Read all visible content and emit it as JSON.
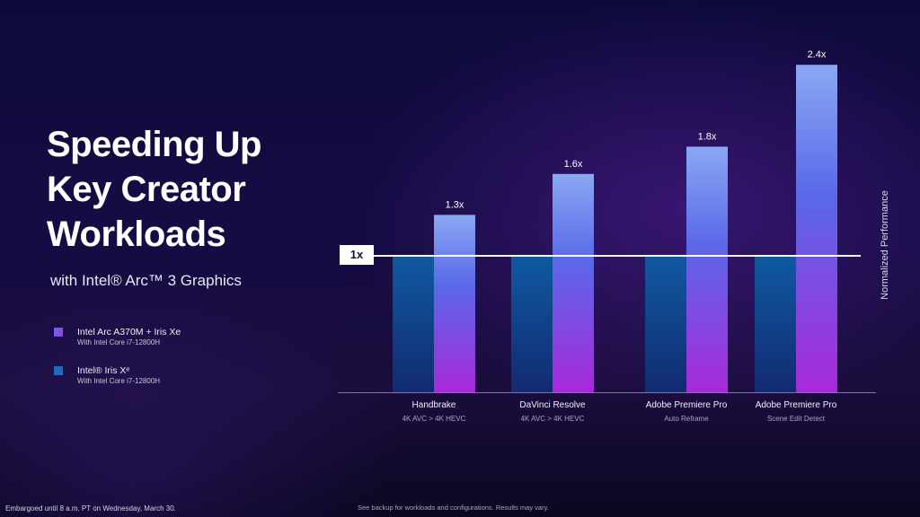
{
  "slide": {
    "title_lines": [
      "Speeding Up",
      "Key Creator",
      "Workloads"
    ],
    "subtitle": "with Intel® Arc™ 3 Graphics",
    "baseline_label": "1x",
    "footer_left": "Embargoed until 8 a.m. PT on Wednesday, March 30.",
    "footer_note": "See backup for workloads and configurations. Results may vary."
  },
  "legend": [
    {
      "name": "Intel Arc A370M + Iris Xe",
      "sub": "With Intel Core i7-12800H",
      "color": "#7b52e8"
    },
    {
      "name": "Intel® Iris Xᵉ",
      "sub": "With Intel Core i7-12800H",
      "color": "#1a6ec2"
    }
  ],
  "chart_data": {
    "type": "bar",
    "ylabel": "Normalized Performance",
    "ylim": [
      0,
      2.5
    ],
    "grid": false,
    "categories": [
      {
        "name": "Handbrake",
        "sub": "4K AVC > 4K HEVC"
      },
      {
        "name": "DaVinci Resolve",
        "sub": "4K AVC > 4K HEVC"
      },
      {
        "name": "Adobe Premiere Pro",
        "sub": "Auto Reframe"
      },
      {
        "name": "Adobe Premiere Pro",
        "sub": "Scene Edit Detect"
      }
    ],
    "series": [
      {
        "name": "Intel® Iris Xᵉ",
        "values": [
          1,
          1,
          1,
          1
        ],
        "color": "#1a6ec2"
      },
      {
        "name": "Intel Arc A370M + Iris Xe",
        "values": [
          1.3,
          1.6,
          1.8,
          2.4
        ],
        "labels": [
          "1.3x",
          "1.6x",
          "1.8x",
          "2.4x"
        ],
        "color": "#7b52e8"
      }
    ],
    "reference_line": {
      "value": 1,
      "label": "1x"
    }
  }
}
